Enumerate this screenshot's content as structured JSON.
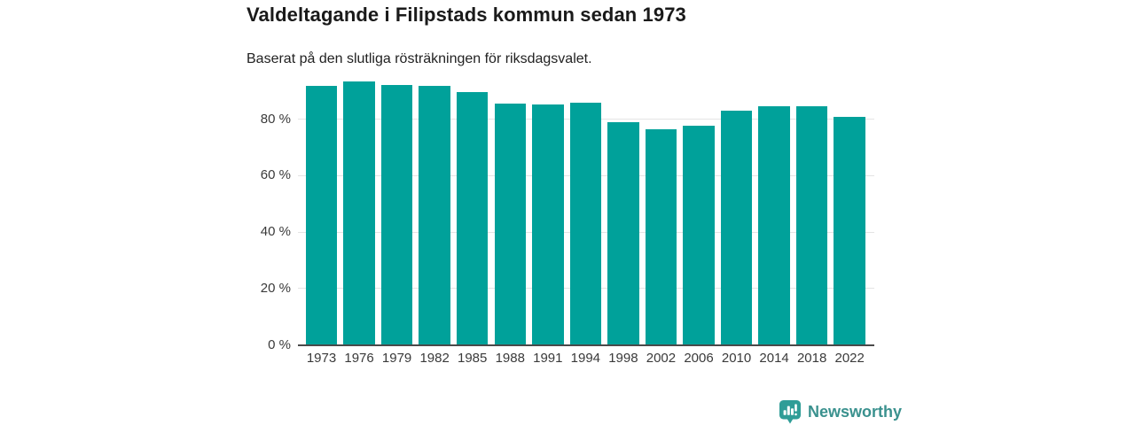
{
  "header": {
    "title": "Valdeltagande i Filipstads kommun sedan 1973",
    "subtitle": "Baserat på den slutliga rösträkningen för riksdagsvalet."
  },
  "chart_data": {
    "type": "bar",
    "title": "Valdeltagande i Filipstads kommun sedan 1973",
    "subtitle": "Baserat på den slutliga rösträkningen för riksdagsvalet.",
    "categories": [
      "1973",
      "1976",
      "1979",
      "1982",
      "1985",
      "1988",
      "1991",
      "1994",
      "1998",
      "2002",
      "2006",
      "2010",
      "2014",
      "2018",
      "2022"
    ],
    "values": [
      91.9,
      93.4,
      92.2,
      91.9,
      89.6,
      85.4,
      85.2,
      85.9,
      78.9,
      76.4,
      77.7,
      83.1,
      84.4,
      84.5,
      80.9
    ],
    "unit": "%",
    "xlabel": "",
    "ylabel": "",
    "ylim": [
      0,
      100
    ],
    "yticks": [
      0,
      20,
      40,
      60,
      80
    ],
    "ytick_suffix": " %",
    "grid": "horizontal",
    "legend": "none",
    "bar_color": "#00a19a"
  },
  "branding": {
    "logo_text": "Newsworthy",
    "logo_icon": "bar-chart-speech-bubble-icon",
    "logo_color": "#2f9d97",
    "text_color": "#3a918e"
  },
  "colors": {
    "background": "#ffffff",
    "title": "#1a1a1a",
    "axis_labels": "#3a3a3a",
    "gridline": "#e4e4e4",
    "baseline": "#4a4a4a",
    "bar": "#00a19a"
  }
}
